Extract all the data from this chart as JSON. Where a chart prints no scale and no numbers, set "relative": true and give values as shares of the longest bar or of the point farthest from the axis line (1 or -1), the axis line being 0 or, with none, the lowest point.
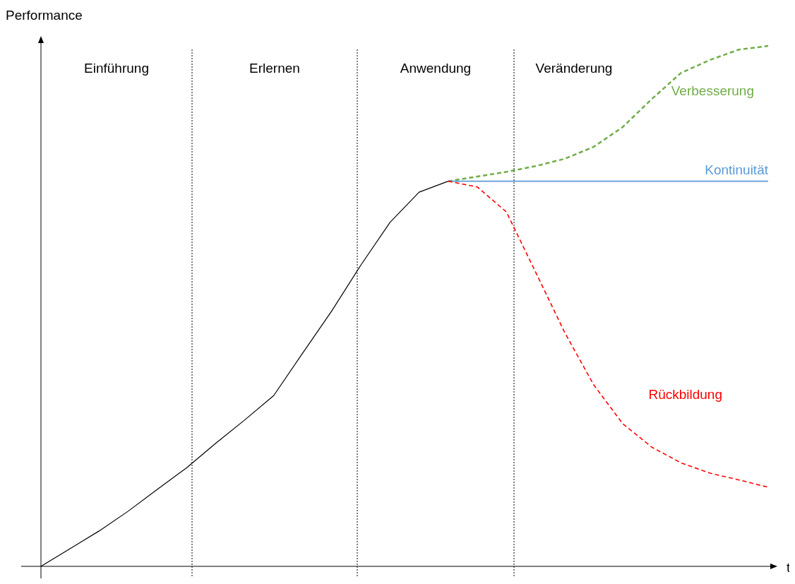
{
  "chart_data": {
    "type": "line",
    "relative": true,
    "xlabel": "t",
    "ylabel": "Performance",
    "annotations": [
      "Einführung",
      "Erlernen",
      "Anwendung",
      "Veränderung"
    ],
    "categories": [
      null,
      null,
      null,
      null,
      null,
      null,
      null,
      null,
      null,
      null,
      null,
      null,
      null,
      null,
      null,
      null,
      null,
      null,
      null,
      null,
      null,
      null,
      null,
      null,
      null,
      null
    ],
    "series": [
      {
        "color": "#000000",
        "line_style": "solid",
        "values": [
          0,
          0.034,
          0.068,
          0.106,
          0.148,
          0.189,
          0.236,
          0.281,
          0.328,
          0.41,
          0.491,
          0.579,
          0.661,
          0.719,
          0.74,
          null,
          null,
          null,
          null,
          null,
          null,
          null,
          null,
          null,
          null,
          null
        ]
      },
      {
        "name": "Verbesserung",
        "color": "#70ad47",
        "line_style": "dashed",
        "values": [
          null,
          null,
          null,
          null,
          null,
          null,
          null,
          null,
          null,
          null,
          null,
          null,
          null,
          null,
          0.74,
          0.749,
          0.758,
          0.769,
          0.783,
          0.806,
          0.844,
          0.898,
          0.948,
          0.973,
          0.993,
          1
        ]
      },
      {
        "name": "Kontinuität",
        "color": "#5b9bd5",
        "line_style": "solid",
        "values": [
          null,
          null,
          null,
          null,
          null,
          null,
          null,
          null,
          null,
          null,
          null,
          null,
          null,
          null,
          0.74,
          0.74,
          0.74,
          0.74,
          0.74,
          0.74,
          0.74,
          0.74,
          0.74,
          0.74,
          0.74,
          0.74
        ]
      },
      {
        "name": "Rückbildung",
        "color": "#ff0000",
        "line_style": "dashed",
        "values": [
          null,
          null,
          null,
          null,
          null,
          null,
          null,
          null,
          null,
          null,
          null,
          null,
          null,
          null,
          0.74,
          0.729,
          0.681,
          0.566,
          0.45,
          0.349,
          0.274,
          0.229,
          0.199,
          0.179,
          0.166,
          0.152
        ]
      }
    ]
  }
}
